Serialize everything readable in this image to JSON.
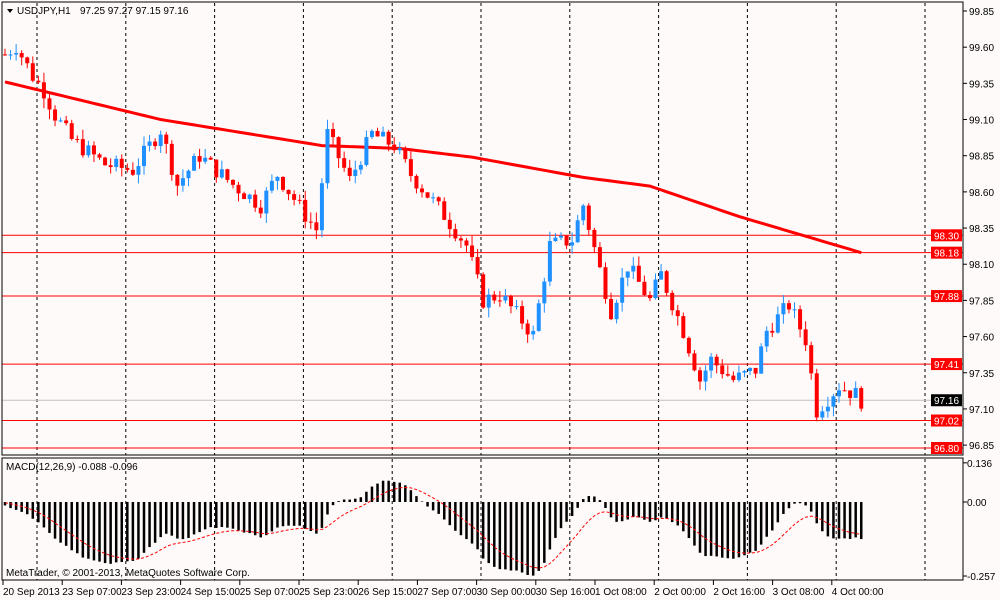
{
  "header": {
    "symbol": "USDJPY,H1",
    "ohlc": "97.25 97.27 97.15 97.16"
  },
  "copyright": "MetaTrader, © 2001-2013, MetaQuotes Software Corp.",
  "macd_label": "MACD(12,26,9) -0.088 -0.096",
  "colors": {
    "bull": "#1e90ff",
    "bear": "#ff0000",
    "ma": "#ff0000",
    "level": "#ff0000",
    "bid": "#c0c0c0"
  },
  "chart_data": {
    "type": "candlestick",
    "title": "USDJPY,H1",
    "price_ticks": [
      "99.85",
      "99.60",
      "99.35",
      "99.10",
      "98.85",
      "98.60",
      "98.35",
      "98.10",
      "97.85",
      "97.60",
      "97.35",
      "97.10",
      "96.85"
    ],
    "price_range": [
      96.8,
      99.91
    ],
    "levels": [
      "98.30",
      "98.18",
      "97.88",
      "97.41",
      "97.02",
      "96.80"
    ],
    "bid": "97.16",
    "time_labels": [
      "20 Sep 2013",
      "23 Sep 07:00",
      "23 Sep 23:00",
      "24 Sep 15:00",
      "25 Sep 07:00",
      "25 Sep 23:00",
      "26 Sep 15:00",
      "27 Sep 07:00",
      "30 Sep 00:00",
      "30 Sep 16:00",
      "1 Oct 08:00",
      "2 Oct 00:00",
      "2 Oct 16:00",
      "3 Oct 08:00",
      "4 Oct 00:00"
    ],
    "bars": 155,
    "close_waypoints": [
      [
        0,
        99.55
      ],
      [
        2,
        99.61
      ],
      [
        5,
        99.4
      ],
      [
        7,
        99.3
      ],
      [
        9,
        99.13
      ],
      [
        12,
        98.96
      ],
      [
        18,
        98.79
      ],
      [
        23,
        98.75
      ],
      [
        28,
        99.03
      ],
      [
        31,
        98.65
      ],
      [
        35,
        98.85
      ],
      [
        41,
        98.65
      ],
      [
        46,
        98.51
      ],
      [
        49,
        98.72
      ],
      [
        54,
        98.44
      ],
      [
        56,
        98.34
      ],
      [
        58,
        99.0
      ],
      [
        62,
        98.68
      ],
      [
        66,
        99.0
      ],
      [
        70,
        98.92
      ],
      [
        73,
        98.72
      ],
      [
        79,
        98.44
      ],
      [
        83,
        98.23
      ],
      [
        86,
        97.85
      ],
      [
        89,
        97.89
      ],
      [
        93,
        97.71
      ],
      [
        95,
        97.61
      ],
      [
        98,
        98.23
      ],
      [
        102,
        98.27
      ],
      [
        104,
        98.51
      ],
      [
        107,
        98.06
      ],
      [
        109,
        97.78
      ],
      [
        112,
        98.09
      ],
      [
        116,
        97.85
      ],
      [
        118,
        98.03
      ],
      [
        122,
        97.64
      ],
      [
        125,
        97.3
      ],
      [
        127,
        97.44
      ],
      [
        131,
        97.3
      ],
      [
        135,
        97.37
      ],
      [
        137,
        97.64
      ],
      [
        141,
        97.82
      ],
      [
        144,
        97.58
      ],
      [
        146,
        97.09
      ],
      [
        150,
        97.26
      ],
      [
        153,
        97.2
      ],
      [
        154,
        97.16
      ]
    ],
    "ma_waypoints": [
      [
        0,
        99.36
      ],
      [
        28,
        99.1
      ],
      [
        57,
        98.92
      ],
      [
        71,
        98.9
      ],
      [
        84,
        98.84
      ],
      [
        104,
        98.7
      ],
      [
        116,
        98.64
      ],
      [
        132,
        98.43
      ],
      [
        154,
        98.18
      ]
    ],
    "macd": {
      "params": "12,26,9",
      "ticks": [
        "0.136",
        "0.00",
        "-0.257"
      ],
      "range": [
        -0.257,
        0.136
      ]
    }
  }
}
